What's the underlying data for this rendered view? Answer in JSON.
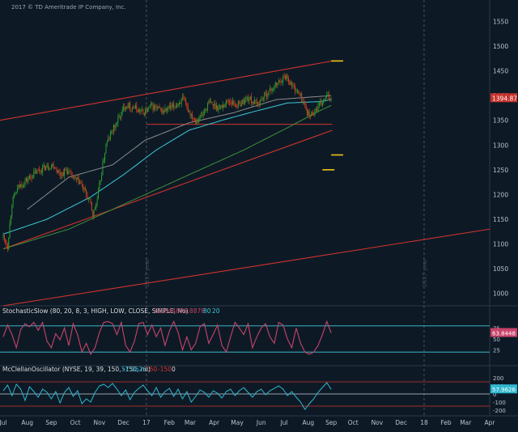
{
  "copyright": "2017 © TD Ameritrade IP Company, Inc.",
  "colors": {
    "background": "#0d1a26",
    "candle_up": "#2e9b2e",
    "candle_down": "#d2411e",
    "sma_cyan": "#3ec9d6",
    "sma_green": "#3f8f3a",
    "sma_gray": "#8a8a8a",
    "trendline_red": "#d2322d",
    "target_yellow": "#f0c419",
    "stoch_line": "#c8436a",
    "mcclellan_line": "#2fb8d0",
    "level_cyan": "#3ec9d6",
    "level_red": "#d2322d",
    "price_tag": "#c8322c",
    "stoch_tag": "#c8436a",
    "mcclellan_tag": "#2fb8d0"
  },
  "chart_data": [
    {
      "type": "candlestick",
      "panel": "price",
      "y_ticks": [
        1000,
        1050,
        1100,
        1150,
        1200,
        1250,
        1300,
        1350,
        1400,
        1450,
        1500,
        1550
      ],
      "ylim": [
        975,
        1590
      ],
      "last_price": "1394.87",
      "last_price_value": 1394.87,
      "x_labels": [
        "Jul",
        "Aug",
        "Sep",
        "Oct",
        "Nov",
        "Dec",
        "17",
        "Feb",
        "Mar",
        "Apr",
        "May",
        "Jun",
        "Jul",
        "Aug",
        "Sep",
        "Oct",
        "Nov",
        "Dec",
        "18",
        "Feb",
        "Mar",
        "Apr"
      ],
      "x_label_idx": [
        0,
        22,
        44,
        66,
        88,
        110,
        131,
        152,
        171,
        193,
        214,
        236,
        257,
        279,
        300,
        320,
        342,
        364,
        385,
        405,
        423,
        445
      ],
      "year_marker_idx": [
        131,
        385
      ],
      "year_marker_labels": [
        "2017 year",
        "2017 year"
      ],
      "close_waypoints": [
        [
          0,
          1115
        ],
        [
          4,
          1095
        ],
        [
          8,
          1185
        ],
        [
          14,
          1215
        ],
        [
          22,
          1230
        ],
        [
          30,
          1245
        ],
        [
          38,
          1255
        ],
        [
          46,
          1260
        ],
        [
          52,
          1240
        ],
        [
          58,
          1250
        ],
        [
          64,
          1232
        ],
        [
          70,
          1225
        ],
        [
          76,
          1200
        ],
        [
          80,
          1180
        ],
        [
          82,
          1158
        ],
        [
          86,
          1190
        ],
        [
          90,
          1245
        ],
        [
          94,
          1300
        ],
        [
          100,
          1330
        ],
        [
          106,
          1355
        ],
        [
          112,
          1382
        ],
        [
          120,
          1375
        ],
        [
          128,
          1365
        ],
        [
          136,
          1378
        ],
        [
          146,
          1368
        ],
        [
          156,
          1378
        ],
        [
          164,
          1392
        ],
        [
          170,
          1368
        ],
        [
          176,
          1350
        ],
        [
          182,
          1360
        ],
        [
          188,
          1385
        ],
        [
          198,
          1375
        ],
        [
          206,
          1390
        ],
        [
          214,
          1380
        ],
        [
          224,
          1395
        ],
        [
          232,
          1382
        ],
        [
          240,
          1402
        ],
        [
          248,
          1418
        ],
        [
          254,
          1432
        ],
        [
          259,
          1440
        ],
        [
          264,
          1420
        ],
        [
          268,
          1412
        ],
        [
          272,
          1398
        ],
        [
          276,
          1378
        ],
        [
          280,
          1358
        ],
        [
          286,
          1372
        ],
        [
          292,
          1386
        ],
        [
          296,
          1398
        ],
        [
          300,
          1394.87
        ]
      ],
      "last_index": 300,
      "moving_averages": [
        {
          "color_key": "sma_gray",
          "waypoints": [
            [
              22,
              1170
            ],
            [
              60,
              1235
            ],
            [
              100,
              1260
            ],
            [
              130,
              1310
            ],
            [
              170,
              1345
            ],
            [
              210,
              1365
            ],
            [
              250,
              1392
            ],
            [
              300,
              1400
            ]
          ]
        },
        {
          "color_key": "sma_cyan",
          "waypoints": [
            [
              0,
              1120
            ],
            [
              40,
              1150
            ],
            [
              80,
              1195
            ],
            [
              110,
              1240
            ],
            [
              140,
              1290
            ],
            [
              170,
              1330
            ],
            [
              200,
              1350
            ],
            [
              230,
              1368
            ],
            [
              260,
              1385
            ],
            [
              290,
              1388
            ],
            [
              300,
              1392
            ]
          ]
        },
        {
          "color_key": "sma_green",
          "waypoints": [
            [
              0,
              1090
            ],
            [
              60,
              1130
            ],
            [
              100,
              1170
            ],
            [
              140,
              1210
            ],
            [
              180,
              1250
            ],
            [
              220,
              1290
            ],
            [
              260,
              1335
            ],
            [
              290,
              1370
            ],
            [
              300,
              1380
            ]
          ]
        }
      ],
      "trendlines": [
        {
          "color_key": "trendline_red",
          "from": [
            -3,
            1350
          ],
          "to": [
            301,
            1470
          ]
        },
        {
          "color_key": "trendline_red",
          "from": [
            131,
            1342
          ],
          "to": [
            301,
            1342
          ]
        },
        {
          "color_key": "trendline_red",
          "from": [
            0,
            1090
          ],
          "to": [
            301,
            1330
          ]
        },
        {
          "color_key": "trendline_red",
          "from": [
            0,
            975
          ],
          "to": [
            445,
            1130
          ]
        }
      ],
      "target_levels": [
        {
          "value": 1470,
          "from": 300,
          "to": 311
        },
        {
          "value": 1280,
          "from": 300,
          "to": 311
        },
        {
          "value": 1250,
          "from": 292,
          "to": 303
        }
      ]
    },
    {
      "type": "line",
      "panel": "stochastic",
      "legend": "StochasticSlow (80, 20, 8, 3, HIGH, LOW, CLOSE, SIMPLE, No)",
      "legend_values": [
        "63.8448",
        "76.8878",
        "80",
        "20"
      ],
      "last_value": "63.8448",
      "y_ticks": [
        25,
        50,
        75
      ],
      "ylim": [
        0,
        100
      ],
      "levels": [
        80,
        20
      ],
      "waypoints": [
        [
          0,
          55
        ],
        [
          4,
          82
        ],
        [
          8,
          60
        ],
        [
          12,
          30
        ],
        [
          16,
          72
        ],
        [
          20,
          85
        ],
        [
          24,
          78
        ],
        [
          28,
          88
        ],
        [
          32,
          70
        ],
        [
          36,
          88
        ],
        [
          40,
          45
        ],
        [
          44,
          30
        ],
        [
          48,
          62
        ],
        [
          52,
          48
        ],
        [
          56,
          75
        ],
        [
          60,
          35
        ],
        [
          64,
          85
        ],
        [
          68,
          60
        ],
        [
          72,
          20
        ],
        [
          76,
          40
        ],
        [
          80,
          15
        ],
        [
          84,
          30
        ],
        [
          88,
          65
        ],
        [
          92,
          88
        ],
        [
          96,
          90
        ],
        [
          100,
          85
        ],
        [
          104,
          60
        ],
        [
          108,
          88
        ],
        [
          112,
          35
        ],
        [
          116,
          20
        ],
        [
          120,
          45
        ],
        [
          124,
          85
        ],
        [
          128,
          88
        ],
        [
          132,
          60
        ],
        [
          136,
          82
        ],
        [
          140,
          55
        ],
        [
          144,
          75
        ],
        [
          148,
          35
        ],
        [
          152,
          68
        ],
        [
          156,
          90
        ],
        [
          160,
          65
        ],
        [
          164,
          25
        ],
        [
          168,
          55
        ],
        [
          172,
          25
        ],
        [
          176,
          40
        ],
        [
          180,
          78
        ],
        [
          184,
          85
        ],
        [
          188,
          40
        ],
        [
          192,
          60
        ],
        [
          196,
          82
        ],
        [
          200,
          35
        ],
        [
          204,
          20
        ],
        [
          208,
          55
        ],
        [
          212,
          88
        ],
        [
          216,
          75
        ],
        [
          220,
          60
        ],
        [
          224,
          85
        ],
        [
          228,
          30
        ],
        [
          232,
          55
        ],
        [
          236,
          75
        ],
        [
          240,
          85
        ],
        [
          244,
          55
        ],
        [
          248,
          40
        ],
        [
          252,
          88
        ],
        [
          256,
          82
        ],
        [
          260,
          50
        ],
        [
          264,
          30
        ],
        [
          268,
          75
        ],
        [
          272,
          40
        ],
        [
          276,
          20
        ],
        [
          280,
          15
        ],
        [
          284,
          20
        ],
        [
          288,
          35
        ],
        [
          292,
          60
        ],
        [
          296,
          90
        ],
        [
          300,
          63.84
        ]
      ]
    },
    {
      "type": "line",
      "panel": "mcclellan",
      "legend": "McClellanOscillator (NYSE, 19, 39, 150, -150, no)",
      "legend_values": [
        "57.9626",
        "150",
        "-150",
        "0"
      ],
      "last_value": "57.9626",
      "y_ticks": [
        -200,
        -100,
        0,
        100,
        200
      ],
      "ylim": [
        -230,
        230
      ],
      "levels": [
        150,
        0,
        -150
      ],
      "waypoints": [
        [
          0,
          40
        ],
        [
          4,
          110
        ],
        [
          8,
          -20
        ],
        [
          12,
          120
        ],
        [
          16,
          60
        ],
        [
          20,
          -80
        ],
        [
          24,
          90
        ],
        [
          28,
          30
        ],
        [
          32,
          -40
        ],
        [
          36,
          60
        ],
        [
          40,
          20
        ],
        [
          44,
          -60
        ],
        [
          48,
          30
        ],
        [
          52,
          -110
        ],
        [
          56,
          20
        ],
        [
          60,
          80
        ],
        [
          64,
          -30
        ],
        [
          68,
          40
        ],
        [
          72,
          -120
        ],
        [
          76,
          -60
        ],
        [
          80,
          -100
        ],
        [
          84,
          20
        ],
        [
          88,
          100
        ],
        [
          92,
          120
        ],
        [
          96,
          80
        ],
        [
          100,
          130
        ],
        [
          104,
          60
        ],
        [
          108,
          -20
        ],
        [
          112,
          50
        ],
        [
          116,
          -70
        ],
        [
          120,
          20
        ],
        [
          124,
          70
        ],
        [
          128,
          110
        ],
        [
          132,
          40
        ],
        [
          136,
          -20
        ],
        [
          140,
          80
        ],
        [
          144,
          -40
        ],
        [
          148,
          30
        ],
        [
          152,
          70
        ],
        [
          156,
          -30
        ],
        [
          160,
          60
        ],
        [
          164,
          -60
        ],
        [
          168,
          30
        ],
        [
          172,
          -100
        ],
        [
          176,
          -30
        ],
        [
          180,
          50
        ],
        [
          184,
          20
        ],
        [
          188,
          -40
        ],
        [
          192,
          40
        ],
        [
          196,
          10
        ],
        [
          200,
          -50
        ],
        [
          204,
          30
        ],
        [
          208,
          60
        ],
        [
          212,
          -20
        ],
        [
          216,
          40
        ],
        [
          220,
          80
        ],
        [
          224,
          20
        ],
        [
          228,
          -40
        ],
        [
          232,
          30
        ],
        [
          236,
          60
        ],
        [
          240,
          -10
        ],
        [
          244,
          40
        ],
        [
          248,
          70
        ],
        [
          252,
          100
        ],
        [
          256,
          60
        ],
        [
          260,
          -20
        ],
        [
          264,
          30
        ],
        [
          268,
          -40
        ],
        [
          272,
          -100
        ],
        [
          276,
          -190
        ],
        [
          280,
          -120
        ],
        [
          284,
          -60
        ],
        [
          288,
          20
        ],
        [
          292,
          80
        ],
        [
          296,
          140
        ],
        [
          300,
          57.96
        ]
      ]
    }
  ]
}
